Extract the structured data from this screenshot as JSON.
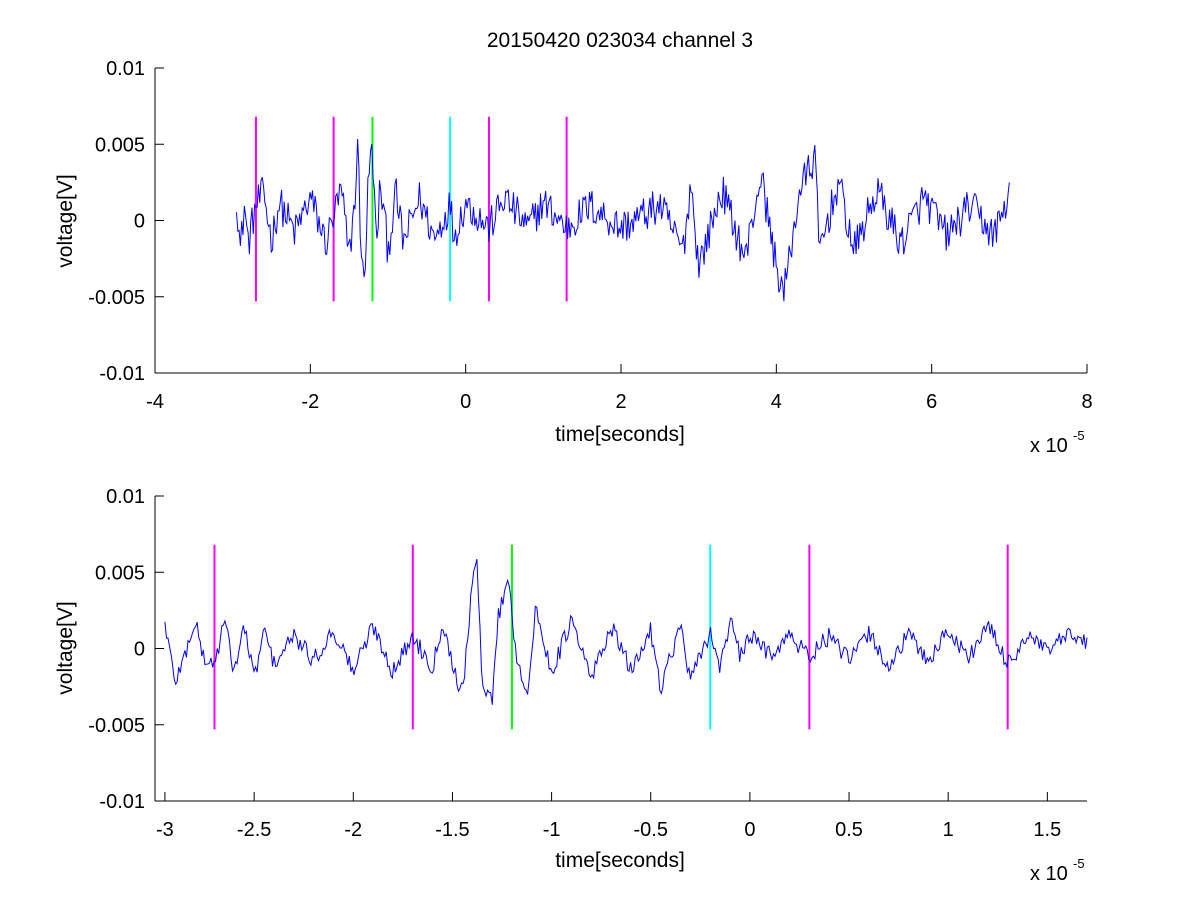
{
  "title": "20150420 023034 channel 3",
  "marker_colors": {
    "magenta": "#ff00ff",
    "green": "#00ff00",
    "cyan": "#00ffff"
  },
  "signal_color": "#0000ff",
  "chart_data": [
    {
      "type": "line",
      "xlabel": "time[seconds]",
      "ylabel": "voltage[V]",
      "x_multiplier": {
        "base": "x 10",
        "exponent": "-5"
      },
      "xlim": [
        -4,
        8
      ],
      "ylim": [
        -0.01,
        0.01
      ],
      "xticks": [
        "-4",
        "-2",
        "0",
        "2",
        "4",
        "6",
        "8"
      ],
      "yticks": [
        "-0.01",
        "-0.005",
        "0",
        "0.005",
        "0.01"
      ],
      "grid": false,
      "signal": {
        "x_start": -2.95,
        "x_end": 7.0,
        "anchors": [
          [
            -2.95,
            0.0017
          ],
          [
            -2.9,
            -0.002
          ],
          [
            -2.85,
            0.001
          ],
          [
            -2.8,
            -0.0015
          ],
          [
            -2.7,
            0.001
          ],
          [
            -2.6,
            0.0018
          ],
          [
            -2.5,
            -0.0013
          ],
          [
            -2.4,
            0.0012
          ],
          [
            -2.2,
            -0.0008
          ],
          [
            -2.0,
            0.0015
          ],
          [
            -1.8,
            -0.0015
          ],
          [
            -1.6,
            0.002
          ],
          [
            -1.5,
            -0.0025
          ],
          [
            -1.4,
            0.003
          ],
          [
            -1.38,
            0.0062
          ],
          [
            -1.35,
            -0.003
          ],
          [
            -1.3,
            -0.0035
          ],
          [
            -1.25,
            0.003
          ],
          [
            -1.2,
            0.0048
          ],
          [
            -1.15,
            -0.002
          ],
          [
            -1.1,
            0.0025
          ],
          [
            -1.0,
            -0.002
          ],
          [
            -0.9,
            0.0018
          ],
          [
            -0.8,
            -0.0015
          ],
          [
            -0.6,
            0.0015
          ],
          [
            -0.4,
            -0.0012
          ],
          [
            -0.2,
            0.0011
          ],
          [
            -0.15,
            -0.001
          ],
          [
            0.0,
            0.0012
          ],
          [
            0.3,
            -0.0005
          ],
          [
            0.5,
            0.0015
          ],
          [
            0.8,
            -0.0005
          ],
          [
            1.0,
            0.0012
          ],
          [
            1.3,
            -0.0005
          ],
          [
            1.6,
            0.001
          ],
          [
            2.0,
            -0.0005
          ],
          [
            2.5,
            0.001
          ],
          [
            2.8,
            -0.002
          ],
          [
            2.9,
            0.0025
          ],
          [
            3.0,
            -0.003
          ],
          [
            3.3,
            0.002
          ],
          [
            3.6,
            -0.0025
          ],
          [
            3.8,
            0.003
          ],
          [
            4.0,
            -0.003
          ],
          [
            4.1,
            -0.0048
          ],
          [
            4.3,
            0.002
          ],
          [
            4.5,
            0.0042
          ],
          [
            4.55,
            -0.002
          ],
          [
            4.8,
            0.0025
          ],
          [
            5.0,
            -0.002
          ],
          [
            5.3,
            0.002
          ],
          [
            5.6,
            -0.0015
          ],
          [
            5.9,
            0.0015
          ],
          [
            6.2,
            -0.001
          ],
          [
            6.5,
            0.001
          ],
          [
            6.8,
            -0.001
          ],
          [
            7.0,
            0.0017
          ]
        ],
        "noise_amplitude": 0.0012
      },
      "markers": [
        {
          "x": -2.7,
          "color": "magenta"
        },
        {
          "x": -1.7,
          "color": "magenta"
        },
        {
          "x": -1.2,
          "color": "green"
        },
        {
          "x": -0.2,
          "color": "cyan"
        },
        {
          "x": 0.3,
          "color": "magenta"
        },
        {
          "x": 1.3,
          "color": "magenta"
        }
      ],
      "marker_ylim": [
        -0.0053,
        0.0068
      ]
    },
    {
      "type": "line",
      "xlabel": "time[seconds]",
      "ylabel": "voltage[V]",
      "x_multiplier": {
        "base": "x 10",
        "exponent": "-5"
      },
      "xlim": [
        -3.0,
        1.7
      ],
      "ylim": [
        -0.01,
        0.01
      ],
      "xticks": [
        "-3",
        "-2.5",
        "-2",
        "-1.5",
        "-1",
        "-0.5",
        "0",
        "0.5",
        "1",
        "1.5"
      ],
      "xtick_values": [
        -2.95,
        -2.5,
        -2.0,
        -1.5,
        -1.0,
        -0.5,
        0.0,
        0.5,
        1.0,
        1.5
      ],
      "yticks": [
        "-0.01",
        "-0.005",
        "0",
        "0.005",
        "0.01"
      ],
      "grid": false,
      "signal": {
        "x_start": -2.95,
        "x_end": 1.7,
        "anchors": [
          [
            -2.95,
            0.0017
          ],
          [
            -2.9,
            -0.0022
          ],
          [
            -2.85,
            -0.0005
          ],
          [
            -2.8,
            0.0018
          ],
          [
            -2.75,
            -0.0008
          ],
          [
            -2.7,
            -0.001
          ],
          [
            -2.65,
            0.0018
          ],
          [
            -2.6,
            -0.0015
          ],
          [
            -2.55,
            0.0015
          ],
          [
            -2.5,
            -0.002
          ],
          [
            -2.45,
            0.0012
          ],
          [
            -2.4,
            -0.001
          ],
          [
            -2.3,
            0.0008
          ],
          [
            -2.2,
            -0.0008
          ],
          [
            -2.1,
            0.0012
          ],
          [
            -2.0,
            -0.0015
          ],
          [
            -1.9,
            0.0015
          ],
          [
            -1.8,
            -0.0015
          ],
          [
            -1.7,
            0.0008
          ],
          [
            -1.6,
            -0.0012
          ],
          [
            -1.55,
            0.0018
          ],
          [
            -1.5,
            -0.001
          ],
          [
            -1.45,
            -0.003
          ],
          [
            -1.42,
            0.0015
          ],
          [
            -1.38,
            0.0062
          ],
          [
            -1.35,
            -0.002
          ],
          [
            -1.3,
            -0.0035
          ],
          [
            -1.27,
            0.002
          ],
          [
            -1.22,
            0.0048
          ],
          [
            -1.18,
            -0.0003
          ],
          [
            -1.12,
            -0.003
          ],
          [
            -1.08,
            0.0025
          ],
          [
            -1.0,
            -0.0015
          ],
          [
            -0.9,
            0.0018
          ],
          [
            -0.8,
            -0.002
          ],
          [
            -0.7,
            0.0015
          ],
          [
            -0.6,
            -0.0015
          ],
          [
            -0.5,
            0.0012
          ],
          [
            -0.45,
            -0.0025
          ],
          [
            -0.35,
            0.0015
          ],
          [
            -0.3,
            -0.0022
          ],
          [
            -0.2,
            0.0011
          ],
          [
            -0.15,
            -0.0012
          ],
          [
            -0.1,
            0.0018
          ],
          [
            -0.05,
            -0.0005
          ],
          [
            0.0,
            0.0008
          ],
          [
            0.1,
            -0.0003
          ],
          [
            0.2,
            0.0008
          ],
          [
            0.3,
            -0.0005
          ],
          [
            0.4,
            0.0008
          ],
          [
            0.5,
            -0.0008
          ],
          [
            0.6,
            0.001
          ],
          [
            0.7,
            -0.0012
          ],
          [
            0.8,
            0.0009
          ],
          [
            0.9,
            -0.0008
          ],
          [
            1.0,
            0.0012
          ],
          [
            1.1,
            -0.0006
          ],
          [
            1.2,
            0.0015
          ],
          [
            1.3,
            -0.001
          ],
          [
            1.4,
            0.0008
          ],
          [
            1.5,
            -0.0002
          ],
          [
            1.6,
            0.0008
          ],
          [
            1.7,
            0.0004
          ]
        ],
        "noise_amplitude": 0.0006
      },
      "markers": [
        {
          "x": -2.7,
          "color": "magenta"
        },
        {
          "x": -1.7,
          "color": "magenta"
        },
        {
          "x": -1.2,
          "color": "green"
        },
        {
          "x": -0.2,
          "color": "cyan"
        },
        {
          "x": 0.3,
          "color": "magenta"
        },
        {
          "x": 1.3,
          "color": "magenta"
        }
      ],
      "marker_ylim": [
        -0.0053,
        0.0068
      ]
    }
  ]
}
